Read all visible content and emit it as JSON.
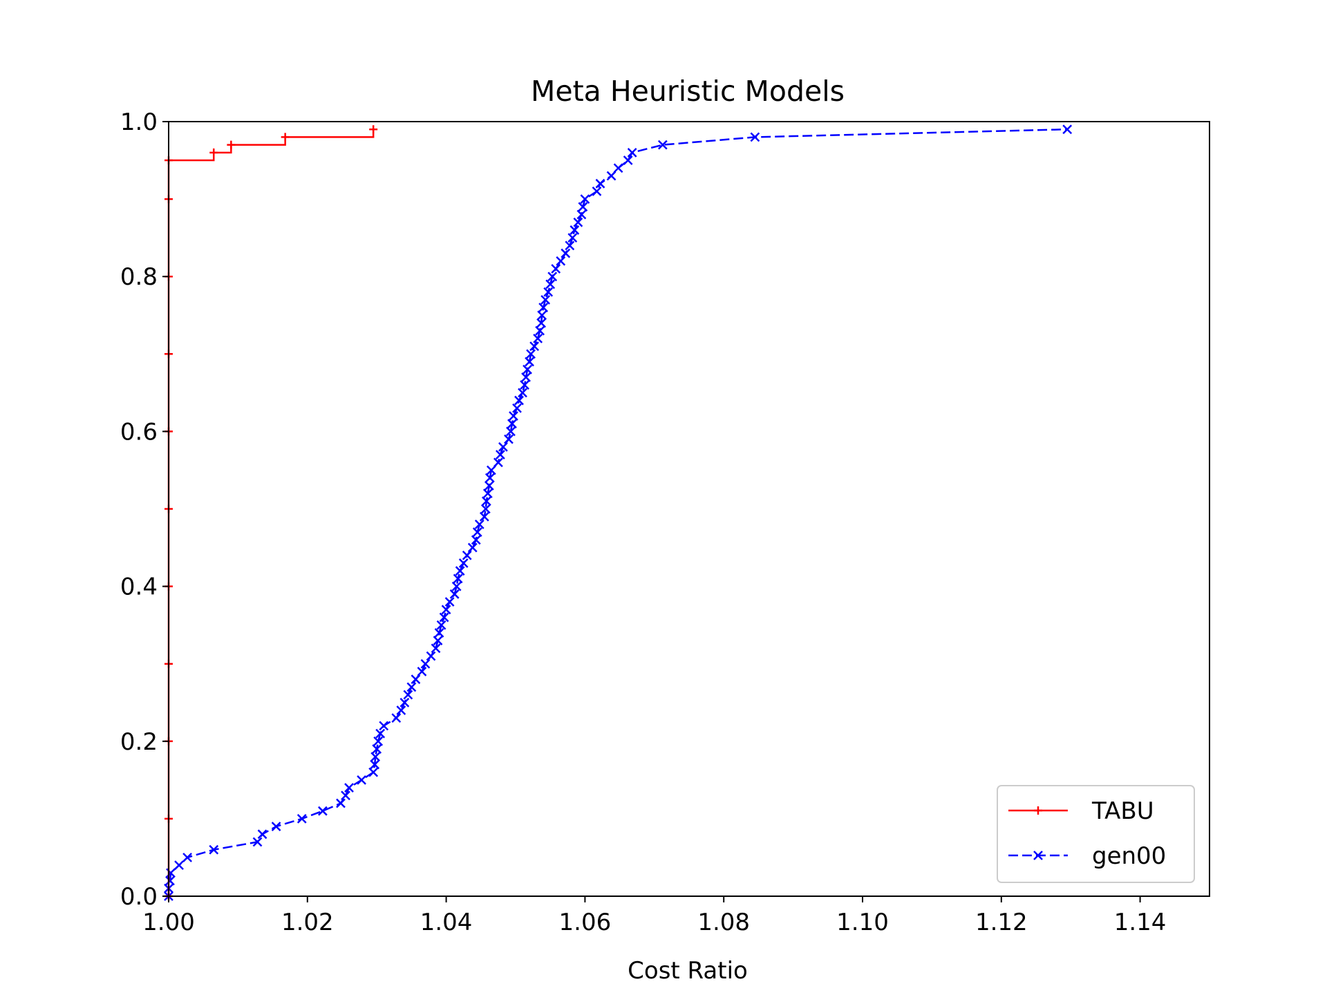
{
  "chart_data": {
    "type": "line",
    "title": "Meta Heuristic Models",
    "xlabel": "Cost Ratio",
    "ylabel": "",
    "xlim": [
      1.0,
      1.15
    ],
    "ylim": [
      0.0,
      1.0
    ],
    "x_ticks": [
      "1.00",
      "1.02",
      "1.04",
      "1.06",
      "1.08",
      "1.10",
      "1.12",
      "1.14"
    ],
    "y_ticks": [
      "0.0",
      "0.2",
      "0.4",
      "0.6",
      "0.8",
      "1.0"
    ],
    "grid": false,
    "legend_position": "lower-right",
    "series": [
      {
        "name": "TABU",
        "color": "#ff0000",
        "linestyle": "solid",
        "marker": "plus",
        "points": [
          [
            1.0,
            0.0
          ],
          [
            1.0,
            0.95
          ],
          [
            1.0065,
            0.95
          ],
          [
            1.0065,
            0.96
          ],
          [
            1.009,
            0.96
          ],
          [
            1.009,
            0.97
          ],
          [
            1.0168,
            0.97
          ],
          [
            1.0168,
            0.98
          ],
          [
            1.0295,
            0.98
          ],
          [
            1.0295,
            0.99
          ]
        ],
        "markers": [
          [
            1.0,
            0.0
          ],
          [
            1.0,
            0.1
          ],
          [
            1.0,
            0.2
          ],
          [
            1.0,
            0.3
          ],
          [
            1.0,
            0.4
          ],
          [
            1.0,
            0.5
          ],
          [
            1.0,
            0.6
          ],
          [
            1.0,
            0.7
          ],
          [
            1.0,
            0.8
          ],
          [
            1.0,
            0.9
          ],
          [
            1.0,
            0.95
          ],
          [
            1.0065,
            0.96
          ],
          [
            1.009,
            0.97
          ],
          [
            1.0168,
            0.98
          ],
          [
            1.0295,
            0.99
          ]
        ]
      },
      {
        "name": "gen00",
        "color": "#0000ff",
        "linestyle": "dashed",
        "marker": "x",
        "points": [
          [
            1.0,
            0.0
          ],
          [
            1.0,
            0.01
          ],
          [
            1.0002,
            0.02
          ],
          [
            1.0003,
            0.03
          ],
          [
            1.0015,
            0.04
          ],
          [
            1.0027,
            0.05
          ],
          [
            1.0065,
            0.06
          ],
          [
            1.0128,
            0.07
          ],
          [
            1.0135,
            0.08
          ],
          [
            1.0155,
            0.09
          ],
          [
            1.0192,
            0.1
          ],
          [
            1.0222,
            0.11
          ],
          [
            1.0248,
            0.12
          ],
          [
            1.0255,
            0.13
          ],
          [
            1.026,
            0.14
          ],
          [
            1.0278,
            0.15
          ],
          [
            1.0295,
            0.16
          ],
          [
            1.0297,
            0.17
          ],
          [
            1.0298,
            0.18
          ],
          [
            1.03,
            0.19
          ],
          [
            1.0302,
            0.2
          ],
          [
            1.0305,
            0.21
          ],
          [
            1.031,
            0.22
          ],
          [
            1.0328,
            0.23
          ],
          [
            1.0335,
            0.24
          ],
          [
            1.034,
            0.25
          ],
          [
            1.0345,
            0.26
          ],
          [
            1.035,
            0.27
          ],
          [
            1.0356,
            0.28
          ],
          [
            1.0365,
            0.29
          ],
          [
            1.037,
            0.3
          ],
          [
            1.0378,
            0.31
          ],
          [
            1.0385,
            0.32
          ],
          [
            1.0388,
            0.33
          ],
          [
            1.039,
            0.34
          ],
          [
            1.0393,
            0.35
          ],
          [
            1.0397,
            0.36
          ],
          [
            1.04,
            0.37
          ],
          [
            1.0405,
            0.38
          ],
          [
            1.0412,
            0.39
          ],
          [
            1.0415,
            0.4
          ],
          [
            1.0417,
            0.41
          ],
          [
            1.042,
            0.42
          ],
          [
            1.0425,
            0.43
          ],
          [
            1.043,
            0.44
          ],
          [
            1.0438,
            0.45
          ],
          [
            1.0443,
            0.46
          ],
          [
            1.0445,
            0.47
          ],
          [
            1.0448,
            0.48
          ],
          [
            1.0455,
            0.49
          ],
          [
            1.0457,
            0.5
          ],
          [
            1.0458,
            0.51
          ],
          [
            1.046,
            0.52
          ],
          [
            1.0462,
            0.53
          ],
          [
            1.0463,
            0.54
          ],
          [
            1.0465,
            0.55
          ],
          [
            1.0475,
            0.56
          ],
          [
            1.0478,
            0.57
          ],
          [
            1.0482,
            0.58
          ],
          [
            1.049,
            0.59
          ],
          [
            1.0493,
            0.6
          ],
          [
            1.0495,
            0.61
          ],
          [
            1.0497,
            0.62
          ],
          [
            1.0502,
            0.63
          ],
          [
            1.0505,
            0.64
          ],
          [
            1.051,
            0.65
          ],
          [
            1.0513,
            0.66
          ],
          [
            1.0515,
            0.67
          ],
          [
            1.0517,
            0.68
          ],
          [
            1.052,
            0.69
          ],
          [
            1.0522,
            0.7
          ],
          [
            1.0527,
            0.71
          ],
          [
            1.0532,
            0.72
          ],
          [
            1.0535,
            0.73
          ],
          [
            1.0537,
            0.74
          ],
          [
            1.0538,
            0.75
          ],
          [
            1.054,
            0.76
          ],
          [
            1.0543,
            0.77
          ],
          [
            1.0547,
            0.78
          ],
          [
            1.055,
            0.79
          ],
          [
            1.0553,
            0.8
          ],
          [
            1.0558,
            0.81
          ],
          [
            1.0565,
            0.82
          ],
          [
            1.0572,
            0.83
          ],
          [
            1.0578,
            0.84
          ],
          [
            1.0582,
            0.85
          ],
          [
            1.0585,
            0.86
          ],
          [
            1.059,
            0.87
          ],
          [
            1.0595,
            0.88
          ],
          [
            1.0597,
            0.89
          ],
          [
            1.06,
            0.9
          ],
          [
            1.0617,
            0.91
          ],
          [
            1.0622,
            0.92
          ],
          [
            1.0638,
            0.93
          ],
          [
            1.0648,
            0.94
          ],
          [
            1.0662,
            0.95
          ],
          [
            1.0668,
            0.96
          ],
          [
            1.0712,
            0.97
          ],
          [
            1.0845,
            0.98
          ],
          [
            1.1295,
            0.99
          ]
        ]
      }
    ]
  }
}
